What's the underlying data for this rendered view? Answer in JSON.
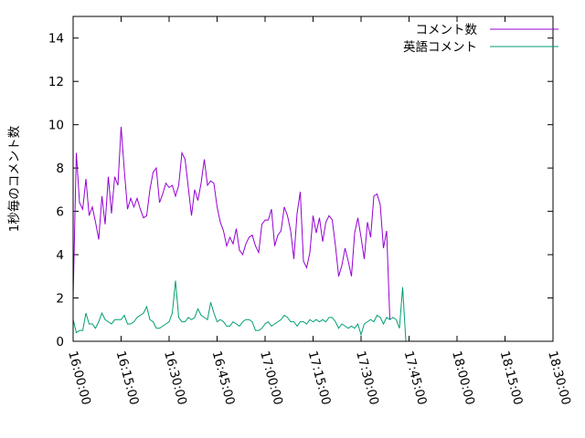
{
  "chart_data": {
    "type": "line",
    "title": "",
    "xlabel": "",
    "ylabel": "1秒毎のコメント数",
    "xlim": [
      "16:00:00",
      "18:30:00"
    ],
    "ylim": [
      0,
      15
    ],
    "grid": false,
    "legend_position": "top-right",
    "y_ticks": [
      "0",
      "2",
      "4",
      "6",
      "8",
      "10",
      "12",
      "14"
    ],
    "x_ticks": [
      "16:00:00",
      "16:15:00",
      "16:30:00",
      "16:45:00",
      "17:00:00",
      "17:15:00",
      "17:30:00",
      "17:45:00",
      "18:00:00",
      "18:15:00",
      "18:30:00"
    ],
    "x_sample_interval_seconds": 60,
    "x_start": "16:00:00",
    "series": [
      {
        "name": "コメント数",
        "color": "#9400d3",
        "values": [
          2.0,
          8.7,
          6.4,
          6.1,
          7.5,
          5.8,
          6.2,
          5.5,
          4.7,
          6.7,
          5.4,
          7.6,
          5.9,
          7.6,
          7.2,
          9.9,
          7.9,
          6.1,
          6.6,
          6.2,
          6.6,
          6.1,
          5.7,
          5.8,
          7.0,
          7.8,
          8.0,
          6.4,
          6.8,
          7.3,
          7.1,
          7.2,
          6.7,
          7.2,
          8.7,
          8.4,
          7.1,
          5.8,
          7.0,
          6.5,
          7.3,
          8.4,
          7.2,
          7.4,
          7.3,
          6.2,
          5.5,
          5.1,
          4.4,
          4.8,
          4.5,
          5.2,
          4.2,
          4.0,
          4.5,
          4.8,
          4.9,
          4.4,
          4.1,
          5.4,
          5.6,
          5.6,
          6.1,
          4.4,
          4.9,
          5.1,
          6.2,
          5.8,
          5.1,
          3.8,
          5.9,
          6.9,
          3.7,
          3.4,
          4.1,
          5.8,
          5.0,
          5.7,
          4.6,
          5.5,
          5.8,
          5.6,
          4.4,
          3.0,
          3.5,
          4.3,
          3.7,
          3.0,
          5.0,
          5.7,
          4.8,
          3.8,
          5.5,
          4.8,
          6.7,
          6.8,
          6.3,
          4.3,
          5.1,
          1.0
        ]
      },
      {
        "name": "英語コメント",
        "color": "#009e73",
        "values": [
          1.0,
          0.4,
          0.5,
          0.5,
          1.3,
          0.8,
          0.8,
          0.6,
          0.9,
          1.3,
          1.0,
          0.9,
          0.8,
          1.0,
          1.0,
          1.0,
          1.2,
          0.8,
          0.8,
          0.9,
          1.1,
          1.2,
          1.3,
          1.6,
          1.0,
          0.9,
          0.6,
          0.6,
          0.7,
          0.8,
          0.9,
          1.3,
          2.8,
          1.1,
          0.9,
          0.9,
          1.1,
          1.0,
          1.1,
          1.5,
          1.2,
          1.1,
          1.0,
          1.8,
          1.3,
          0.9,
          1.0,
          0.9,
          0.7,
          0.7,
          0.9,
          0.8,
          0.7,
          0.9,
          1.0,
          1.0,
          0.9,
          0.5,
          0.5,
          0.6,
          0.8,
          0.9,
          0.7,
          0.8,
          0.9,
          1.0,
          1.2,
          1.1,
          0.9,
          0.9,
          0.7,
          0.9,
          0.9,
          0.8,
          1.0,
          0.9,
          1.0,
          0.9,
          1.0,
          0.9,
          1.1,
          1.1,
          0.9,
          0.6,
          0.8,
          0.7,
          0.6,
          0.7,
          0.6,
          0.8,
          0.3,
          0.8,
          0.9,
          1.0,
          0.9,
          1.2,
          1.1,
          0.8,
          1.1,
          1.0,
          1.1,
          1.0,
          0.6,
          2.5,
          0.0
        ]
      }
    ]
  }
}
